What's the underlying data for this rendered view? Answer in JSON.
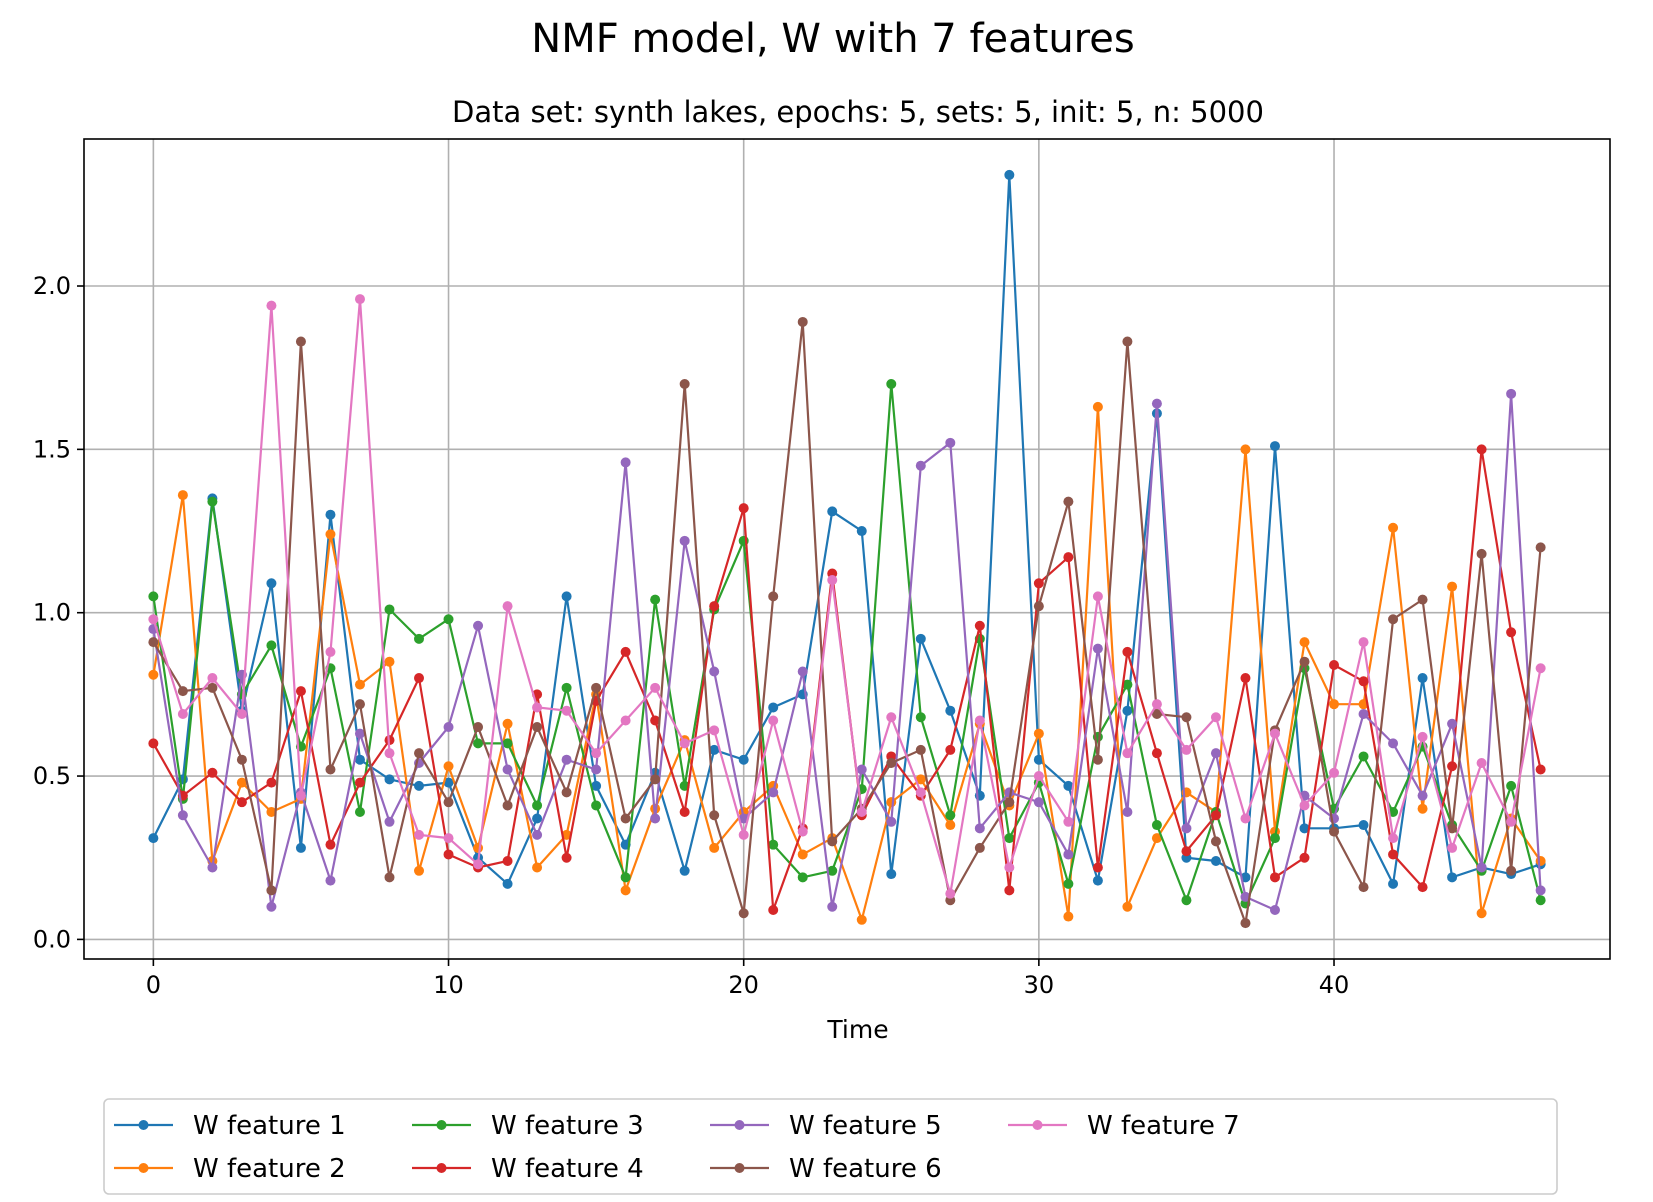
{
  "chart_data": {
    "type": "line",
    "suptitle": "NMF model, W with 7 features",
    "title": "Data set: synth lakes, epochs: 5, sets: 5, init: 5, n: 5000",
    "xlabel": "Time",
    "ylabel": "",
    "xlim": [
      -2.35,
      49.35
    ],
    "ylim": [
      -0.06,
      2.45
    ],
    "xticks": [
      0,
      10,
      20,
      30,
      40
    ],
    "yticks": [
      0.0,
      0.5,
      1.0,
      1.5,
      2.0
    ],
    "xtick_labels": [
      "0",
      "10",
      "20",
      "30",
      "40"
    ],
    "ytick_labels": [
      "0.0",
      "0.5",
      "1.0",
      "1.5",
      "2.0"
    ],
    "grid": true,
    "legend": {
      "location": "below the plot",
      "columns": 5
    },
    "x": [
      0,
      1,
      2,
      3,
      4,
      5,
      6,
      7,
      8,
      9,
      10,
      11,
      12,
      13,
      14,
      15,
      16,
      17,
      18,
      19,
      20,
      21,
      22,
      23,
      24,
      25,
      26,
      27,
      28,
      29,
      30,
      31,
      32,
      33,
      34,
      35,
      36,
      37,
      38,
      39,
      40,
      41,
      42,
      43,
      44,
      45,
      46,
      47
    ],
    "series": [
      {
        "name": "W feature 1",
        "color": "#1f77b4",
        "values": [
          0.31,
          0.49,
          1.35,
          0.7,
          1.09,
          0.28,
          1.3,
          0.55,
          0.49,
          0.47,
          0.48,
          0.25,
          0.17,
          0.37,
          1.05,
          0.47,
          0.29,
          0.51,
          0.21,
          0.58,
          0.55,
          0.71,
          0.75,
          1.31,
          1.25,
          0.2,
          0.92,
          0.7,
          0.44,
          2.34,
          0.55,
          0.47,
          0.18,
          0.7,
          1.61,
          0.25,
          0.24,
          0.19,
          1.51,
          0.34,
          0.34,
          0.35,
          0.17,
          0.8,
          0.19,
          0.22,
          0.2,
          0.23
        ]
      },
      {
        "name": "W feature 2",
        "color": "#ff7f0e",
        "values": [
          0.81,
          1.36,
          0.24,
          0.48,
          0.39,
          0.43,
          1.24,
          0.78,
          0.85,
          0.21,
          0.53,
          0.28,
          0.66,
          0.22,
          0.32,
          0.75,
          0.15,
          0.4,
          0.61,
          0.28,
          0.39,
          0.47,
          0.26,
          0.31,
          0.06,
          0.42,
          0.49,
          0.35,
          0.66,
          0.41,
          0.63,
          0.07,
          1.63,
          0.1,
          0.31,
          0.45,
          0.39,
          1.5,
          0.33,
          0.91,
          0.72,
          0.72,
          1.26,
          0.4,
          1.08,
          0.08,
          0.37,
          0.24
        ]
      },
      {
        "name": "W feature 3",
        "color": "#2ca02c",
        "values": [
          1.05,
          0.43,
          1.34,
          0.75,
          0.9,
          0.59,
          0.83,
          0.39,
          1.01,
          0.92,
          0.98,
          0.6,
          0.6,
          0.41,
          0.77,
          0.41,
          0.19,
          1.04,
          0.47,
          1.01,
          1.22,
          0.29,
          0.19,
          0.21,
          0.46,
          1.7,
          0.68,
          0.38,
          0.92,
          0.31,
          0.48,
          0.17,
          0.62,
          0.78,
          0.35,
          0.12,
          0.39,
          0.11,
          0.31,
          0.83,
          0.4,
          0.56,
          0.39,
          0.59,
          0.35,
          0.21,
          0.47,
          0.12
        ]
      },
      {
        "name": "W feature 4",
        "color": "#d62728",
        "values": [
          0.6,
          0.44,
          0.51,
          0.42,
          0.48,
          0.76,
          0.29,
          0.48,
          0.61,
          0.8,
          0.26,
          0.22,
          0.24,
          0.75,
          0.25,
          0.73,
          0.88,
          0.67,
          0.39,
          1.02,
          1.32,
          0.09,
          0.34,
          1.12,
          0.38,
          0.56,
          0.44,
          0.58,
          0.96,
          0.15,
          1.09,
          1.17,
          0.22,
          0.88,
          0.57,
          0.27,
          0.38,
          0.8,
          0.19,
          0.25,
          0.84,
          0.79,
          0.26,
          0.16,
          0.53,
          1.5,
          0.94,
          0.52
        ]
      },
      {
        "name": "W feature 5",
        "color": "#9467bd",
        "values": [
          0.95,
          0.38,
          0.22,
          0.81,
          0.1,
          0.45,
          0.18,
          0.63,
          0.36,
          0.54,
          0.65,
          0.96,
          0.52,
          0.32,
          0.55,
          0.52,
          1.46,
          0.37,
          1.22,
          0.82,
          0.37,
          0.45,
          0.82,
          0.1,
          0.52,
          0.36,
          1.45,
          1.52,
          0.34,
          0.45,
          0.42,
          0.26,
          0.89,
          0.39,
          1.64,
          0.34,
          0.57,
          0.13,
          0.09,
          0.44,
          0.37,
          0.69,
          0.6,
          0.44,
          0.66,
          0.22,
          1.67,
          0.15
        ]
      },
      {
        "name": "W feature 6",
        "color": "#8c564b",
        "values": [
          0.91,
          0.76,
          0.77,
          0.55,
          0.15,
          1.83,
          0.52,
          0.72,
          0.19,
          0.57,
          0.42,
          0.65,
          0.41,
          0.65,
          0.45,
          0.77,
          0.37,
          0.49,
          1.7,
          0.38,
          0.08,
          1.05,
          1.89,
          0.3,
          0.4,
          0.54,
          0.58,
          0.12,
          0.28,
          0.42,
          1.02,
          1.34,
          0.55,
          1.83,
          0.69,
          0.68,
          0.3,
          0.05,
          0.64,
          0.85,
          0.33,
          0.16,
          0.98,
          1.04,
          0.34,
          1.18,
          0.21,
          1.2
        ]
      },
      {
        "name": "W feature 7",
        "color": "#e377c2",
        "values": [
          0.98,
          0.69,
          0.8,
          0.69,
          1.94,
          0.44,
          0.88,
          1.96,
          0.57,
          0.32,
          0.31,
          0.23,
          1.02,
          0.71,
          0.7,
          0.57,
          0.67,
          0.77,
          0.6,
          0.64,
          0.32,
          0.67,
          0.33,
          1.1,
          0.39,
          0.68,
          0.45,
          0.14,
          0.67,
          0.22,
          0.5,
          0.36,
          1.05,
          0.57,
          0.72,
          0.58,
          0.68,
          0.37,
          0.63,
          0.41,
          0.51,
          0.91,
          0.31,
          0.62,
          0.28,
          0.54,
          0.36,
          0.83
        ]
      }
    ]
  }
}
